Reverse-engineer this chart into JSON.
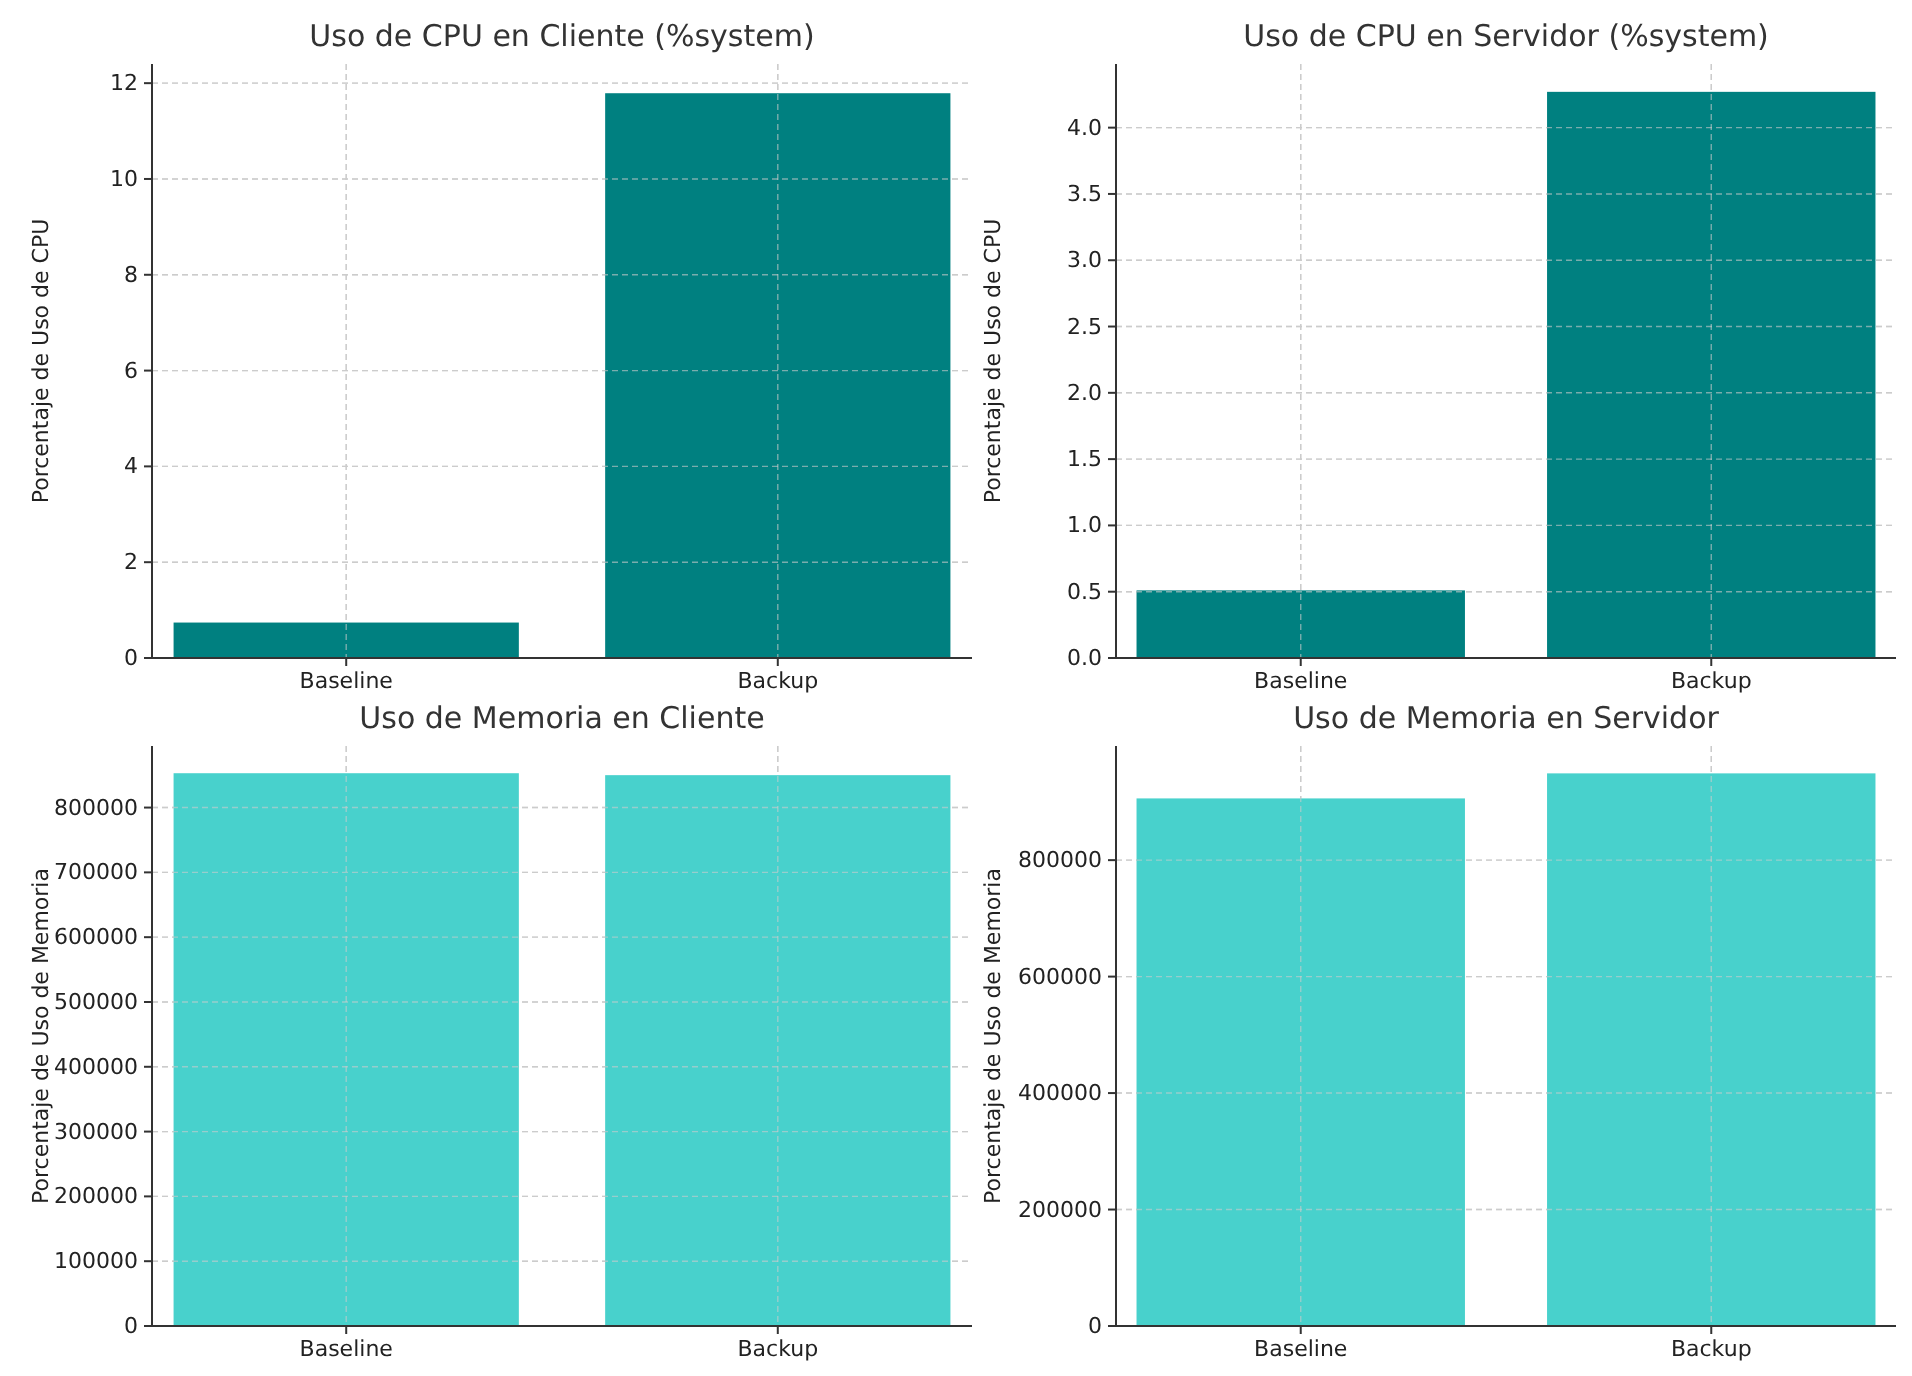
{
  "chart_data": [
    {
      "type": "bar",
      "title": "Uso de CPU en Cliente (%system)",
      "ylabel": "Porcentaje de Uso de CPU",
      "categories": [
        "Baseline",
        "Backup"
      ],
      "values": [
        0.74,
        11.79
      ],
      "color": "#008080",
      "ylim": [
        0,
        12.4
      ],
      "yticks": [
        0,
        2,
        4,
        6,
        8,
        10,
        12
      ],
      "grid": true
    },
    {
      "type": "bar",
      "title": "Uso de CPU en Servidor (%system)",
      "ylabel": "Porcentaje de Uso de CPU",
      "categories": [
        "Baseline",
        "Backup"
      ],
      "values": [
        0.51,
        4.27
      ],
      "color": "#008080",
      "ylim": [
        0,
        4.48
      ],
      "yticks": [
        {
          "value": 0,
          "label": "0.0"
        },
        {
          "value": 0.5,
          "label": "0.5"
        },
        {
          "value": 1,
          "label": "1.0"
        },
        {
          "value": 1.5,
          "label": "1.5"
        },
        {
          "value": 2,
          "label": "2.0"
        },
        {
          "value": 2.5,
          "label": "2.5"
        },
        {
          "value": 3,
          "label": "3.0"
        },
        {
          "value": 3.5,
          "label": "3.5"
        },
        {
          "value": 4,
          "label": "4.0"
        }
      ],
      "grid": true
    },
    {
      "type": "bar",
      "title": "Uso de Memoria en Cliente",
      "ylabel": "Porcentaje de Uso de Memoria",
      "categories": [
        "Baseline",
        "Backup"
      ],
      "values": [
        853000,
        850000
      ],
      "color": "#48d1cc",
      "ylim": [
        0,
        895000
      ],
      "yticks": [
        0,
        100000,
        200000,
        300000,
        400000,
        500000,
        600000,
        700000,
        800000
      ],
      "grid": true
    },
    {
      "type": "bar",
      "title": "Uso de Memoria en Servidor",
      "ylabel": "Porcentaje de Uso de Memoria",
      "categories": [
        "Baseline",
        "Backup"
      ],
      "values": [
        906000,
        949000
      ],
      "color": "#48d1cc",
      "ylim": [
        0,
        996000
      ],
      "yticks": [
        0,
        200000,
        400000,
        600000,
        800000
      ],
      "grid": true
    }
  ]
}
